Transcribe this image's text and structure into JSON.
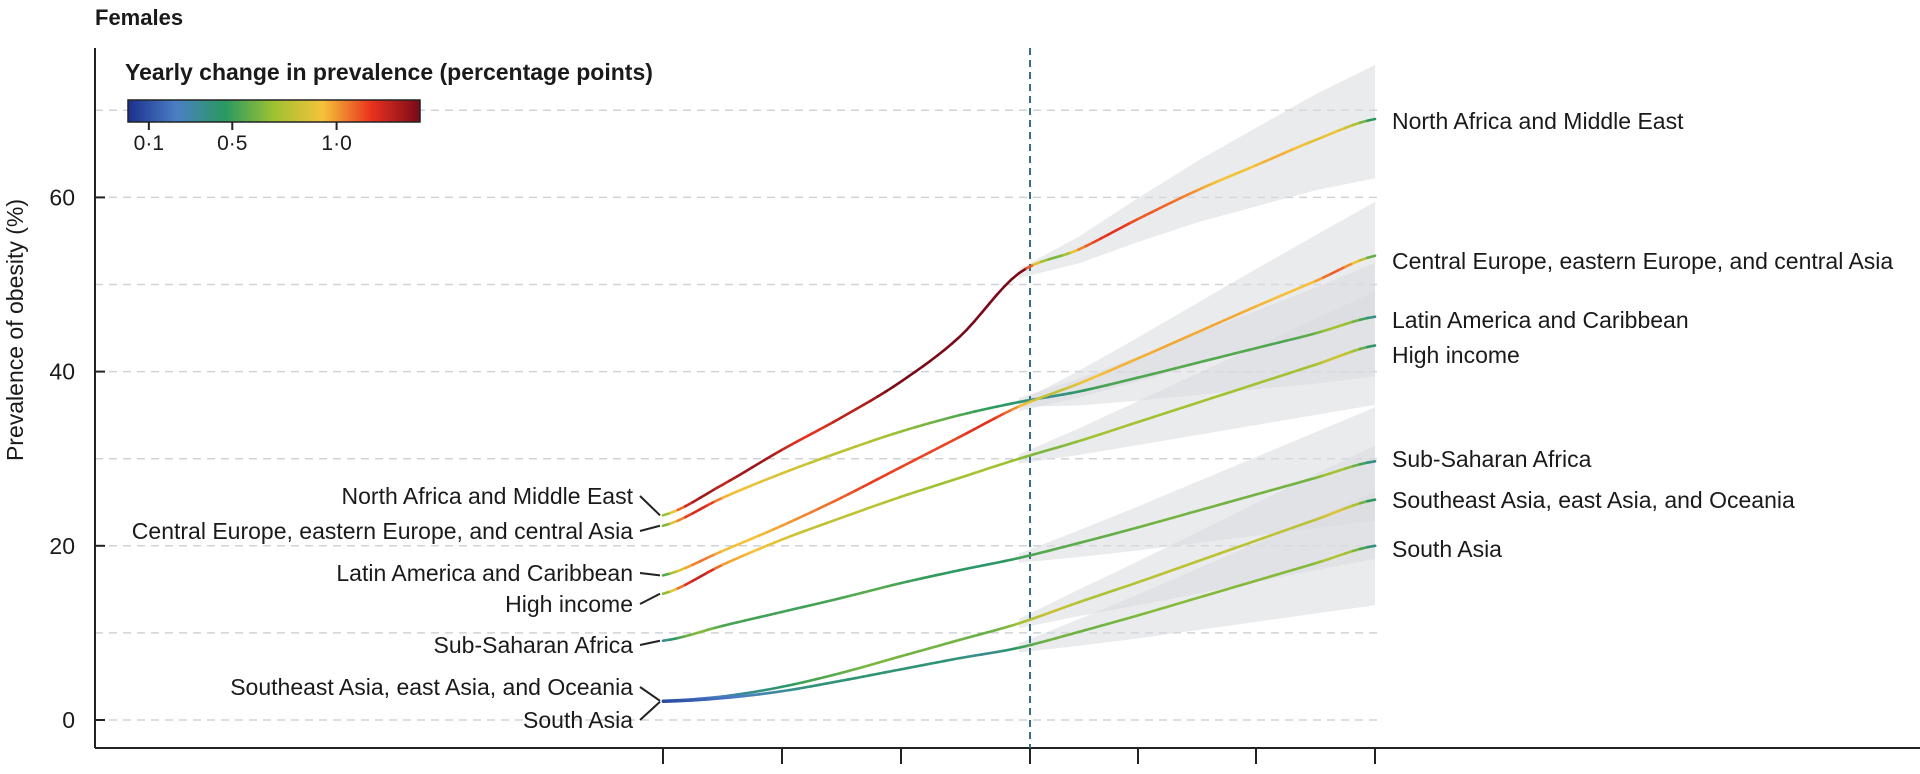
{
  "chart_data": {
    "type": "line",
    "title": "Females",
    "ylabel": "Prevalence of obesity (%)",
    "xlabel": "",
    "ylim": [
      -3,
      78
    ],
    "y_ticks": [
      0,
      20,
      40,
      60
    ],
    "y_tick_labels": [
      "0",
      "20",
      "40",
      "60"
    ],
    "gridlines_y": [
      0,
      10,
      20,
      30,
      40,
      50,
      60,
      70
    ],
    "grid": "horizontal dashed",
    "x_tick_count": 7,
    "divider": "vertical dashed line between estimated and projected periods",
    "legend": {
      "title": "Yearly change in prevalence (percentage points)",
      "placement": "top-left",
      "colorscale": [
        "#1c2f8f",
        "#4a7fc4",
        "#2a9960",
        "#9ec232",
        "#f6c23a",
        "#e8321e",
        "#7a0a18"
      ],
      "range": [
        0.0,
        1.4
      ],
      "tick_values": [
        0.1,
        0.5,
        1.0
      ],
      "tick_labels": [
        "0·1",
        "0·5",
        "1·0"
      ]
    },
    "series": [
      {
        "name": "North Africa and Middle East",
        "left_label": "North Africa and Middle East",
        "right_label": "North Africa and Middle East",
        "values": [
          23.5,
          27,
          31,
          34.7,
          38.8,
          44,
          51.3,
          54,
          57.5,
          60.8,
          63.7,
          66.6,
          69
        ]
      },
      {
        "name": "Central Europe, eastern Europe, and central Asia",
        "left_label": "Central Europe, eastern Europe, and central Asia",
        "right_label": "Central Europe, eastern Europe, and central Asia",
        "values": [
          22.3,
          25.5,
          28.3,
          30.8,
          33.1,
          35,
          36.5,
          37.7,
          39.3,
          41,
          42.7,
          44.4,
          46.3
        ]
      },
      {
        "name": "Latin America and Caribbean",
        "left_label": "Latin America and Caribbean",
        "right_label": "Latin America and Caribbean",
        "values": [
          16.6,
          19.4,
          22.3,
          25.5,
          29,
          32.5,
          36,
          38.6,
          41.5,
          44.5,
          47.5,
          50.4,
          53.3
        ]
      },
      {
        "name": "High income",
        "left_label": "High income",
        "right_label": "High income",
        "values": [
          14.5,
          17.8,
          20.7,
          23.2,
          25.6,
          27.8,
          30,
          32,
          34.2,
          36.4,
          38.6,
          40.8,
          43
        ]
      },
      {
        "name": "Sub-Saharan Africa",
        "left_label": "Sub-Saharan Africa",
        "right_label": "Sub-Saharan Africa",
        "values": [
          9.1,
          10.8,
          12.4,
          14,
          15.7,
          17.2,
          18.6,
          20.3,
          22.1,
          24,
          25.9,
          27.8,
          29.7
        ]
      },
      {
        "name": "Southeast Asia, east Asia, and Oceania",
        "left_label": "Southeast Asia, east Asia, and Oceania",
        "right_label": "Southeast Asia, east Asia, and Oceania",
        "values": [
          2.2,
          2.7,
          3.8,
          5.4,
          7.3,
          9.2,
          11.1,
          13.5,
          15.8,
          18.2,
          20.6,
          23,
          25.3
        ]
      },
      {
        "name": "South Asia",
        "left_label": "South Asia",
        "right_label": "South Asia",
        "values": [
          2.1,
          2.5,
          3.3,
          4.5,
          5.8,
          7.1,
          8.3,
          10.1,
          12,
          14,
          16,
          18,
          20
        ]
      }
    ]
  }
}
